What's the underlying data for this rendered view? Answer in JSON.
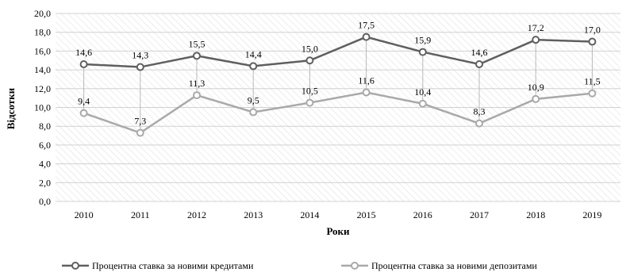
{
  "chart_data": {
    "type": "line",
    "categories": [
      "2010",
      "2011",
      "2012",
      "2013",
      "2014",
      "2015",
      "2016",
      "2017",
      "2018",
      "2019"
    ],
    "series": [
      {
        "name": "Процентна ставка за новими кредитами",
        "values": [
          14.6,
          14.3,
          15.5,
          14.4,
          15.0,
          17.5,
          15.9,
          14.6,
          17.2,
          17.0
        ],
        "labels": [
          "14,6",
          "14,3",
          "15,5",
          "14,4",
          "15,0",
          "17,5",
          "15,9",
          "14,6",
          "17,2",
          "17,0"
        ],
        "color": "#5f5f5f"
      },
      {
        "name": "Процентна ставка за новими депозитами",
        "values": [
          9.4,
          7.3,
          11.3,
          9.5,
          10.5,
          11.6,
          10.4,
          8.3,
          10.9,
          11.5
        ],
        "labels": [
          "9,4",
          "7,3",
          "11,3",
          "9,5",
          "10,5",
          "11,6",
          "10,4",
          "8,3",
          "10,9",
          "11,5"
        ],
        "color": "#a9a9a9"
      }
    ],
    "xlabel": "Роки",
    "ylabel": "Відсотки",
    "ylim": [
      0,
      20
    ],
    "yticks": [
      "0,0",
      "2,0",
      "4,0",
      "6,0",
      "8,0",
      "10,0",
      "12,0",
      "14,0",
      "16,0",
      "18,0",
      "20,0"
    ],
    "grid": true,
    "high_low_lines": true,
    "legend_position": "bottom"
  }
}
